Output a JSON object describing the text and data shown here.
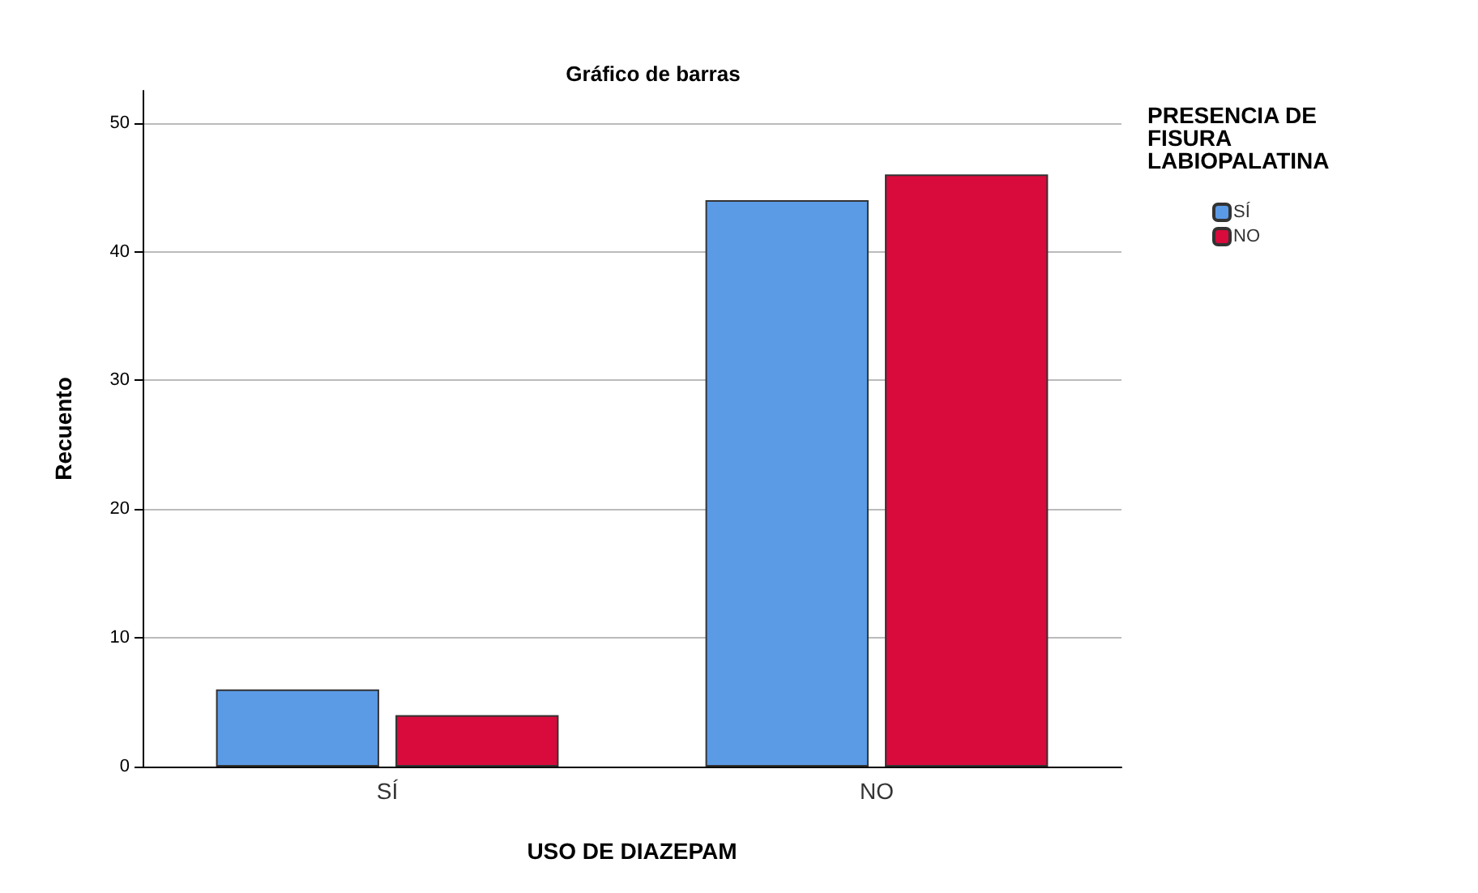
{
  "chart_data": {
    "type": "bar",
    "title": "Gráfico de barras",
    "xlabel": "USO DE DIAZEPAM",
    "ylabel": "Recuento",
    "legend_title": "PRESENCIA DE FISURA LABIOPALATINA",
    "categories": [
      "SÍ",
      "NO"
    ],
    "series": [
      {
        "name": "SÍ",
        "color": "#5b9be6",
        "values": [
          6,
          44
        ]
      },
      {
        "name": "NO",
        "color": "#d80b3c",
        "values": [
          4,
          46
        ]
      }
    ],
    "ylim": [
      0,
      52.5
    ],
    "yticks": [
      0,
      10,
      20,
      30,
      40,
      50
    ],
    "grid": "y",
    "legend": "right"
  }
}
